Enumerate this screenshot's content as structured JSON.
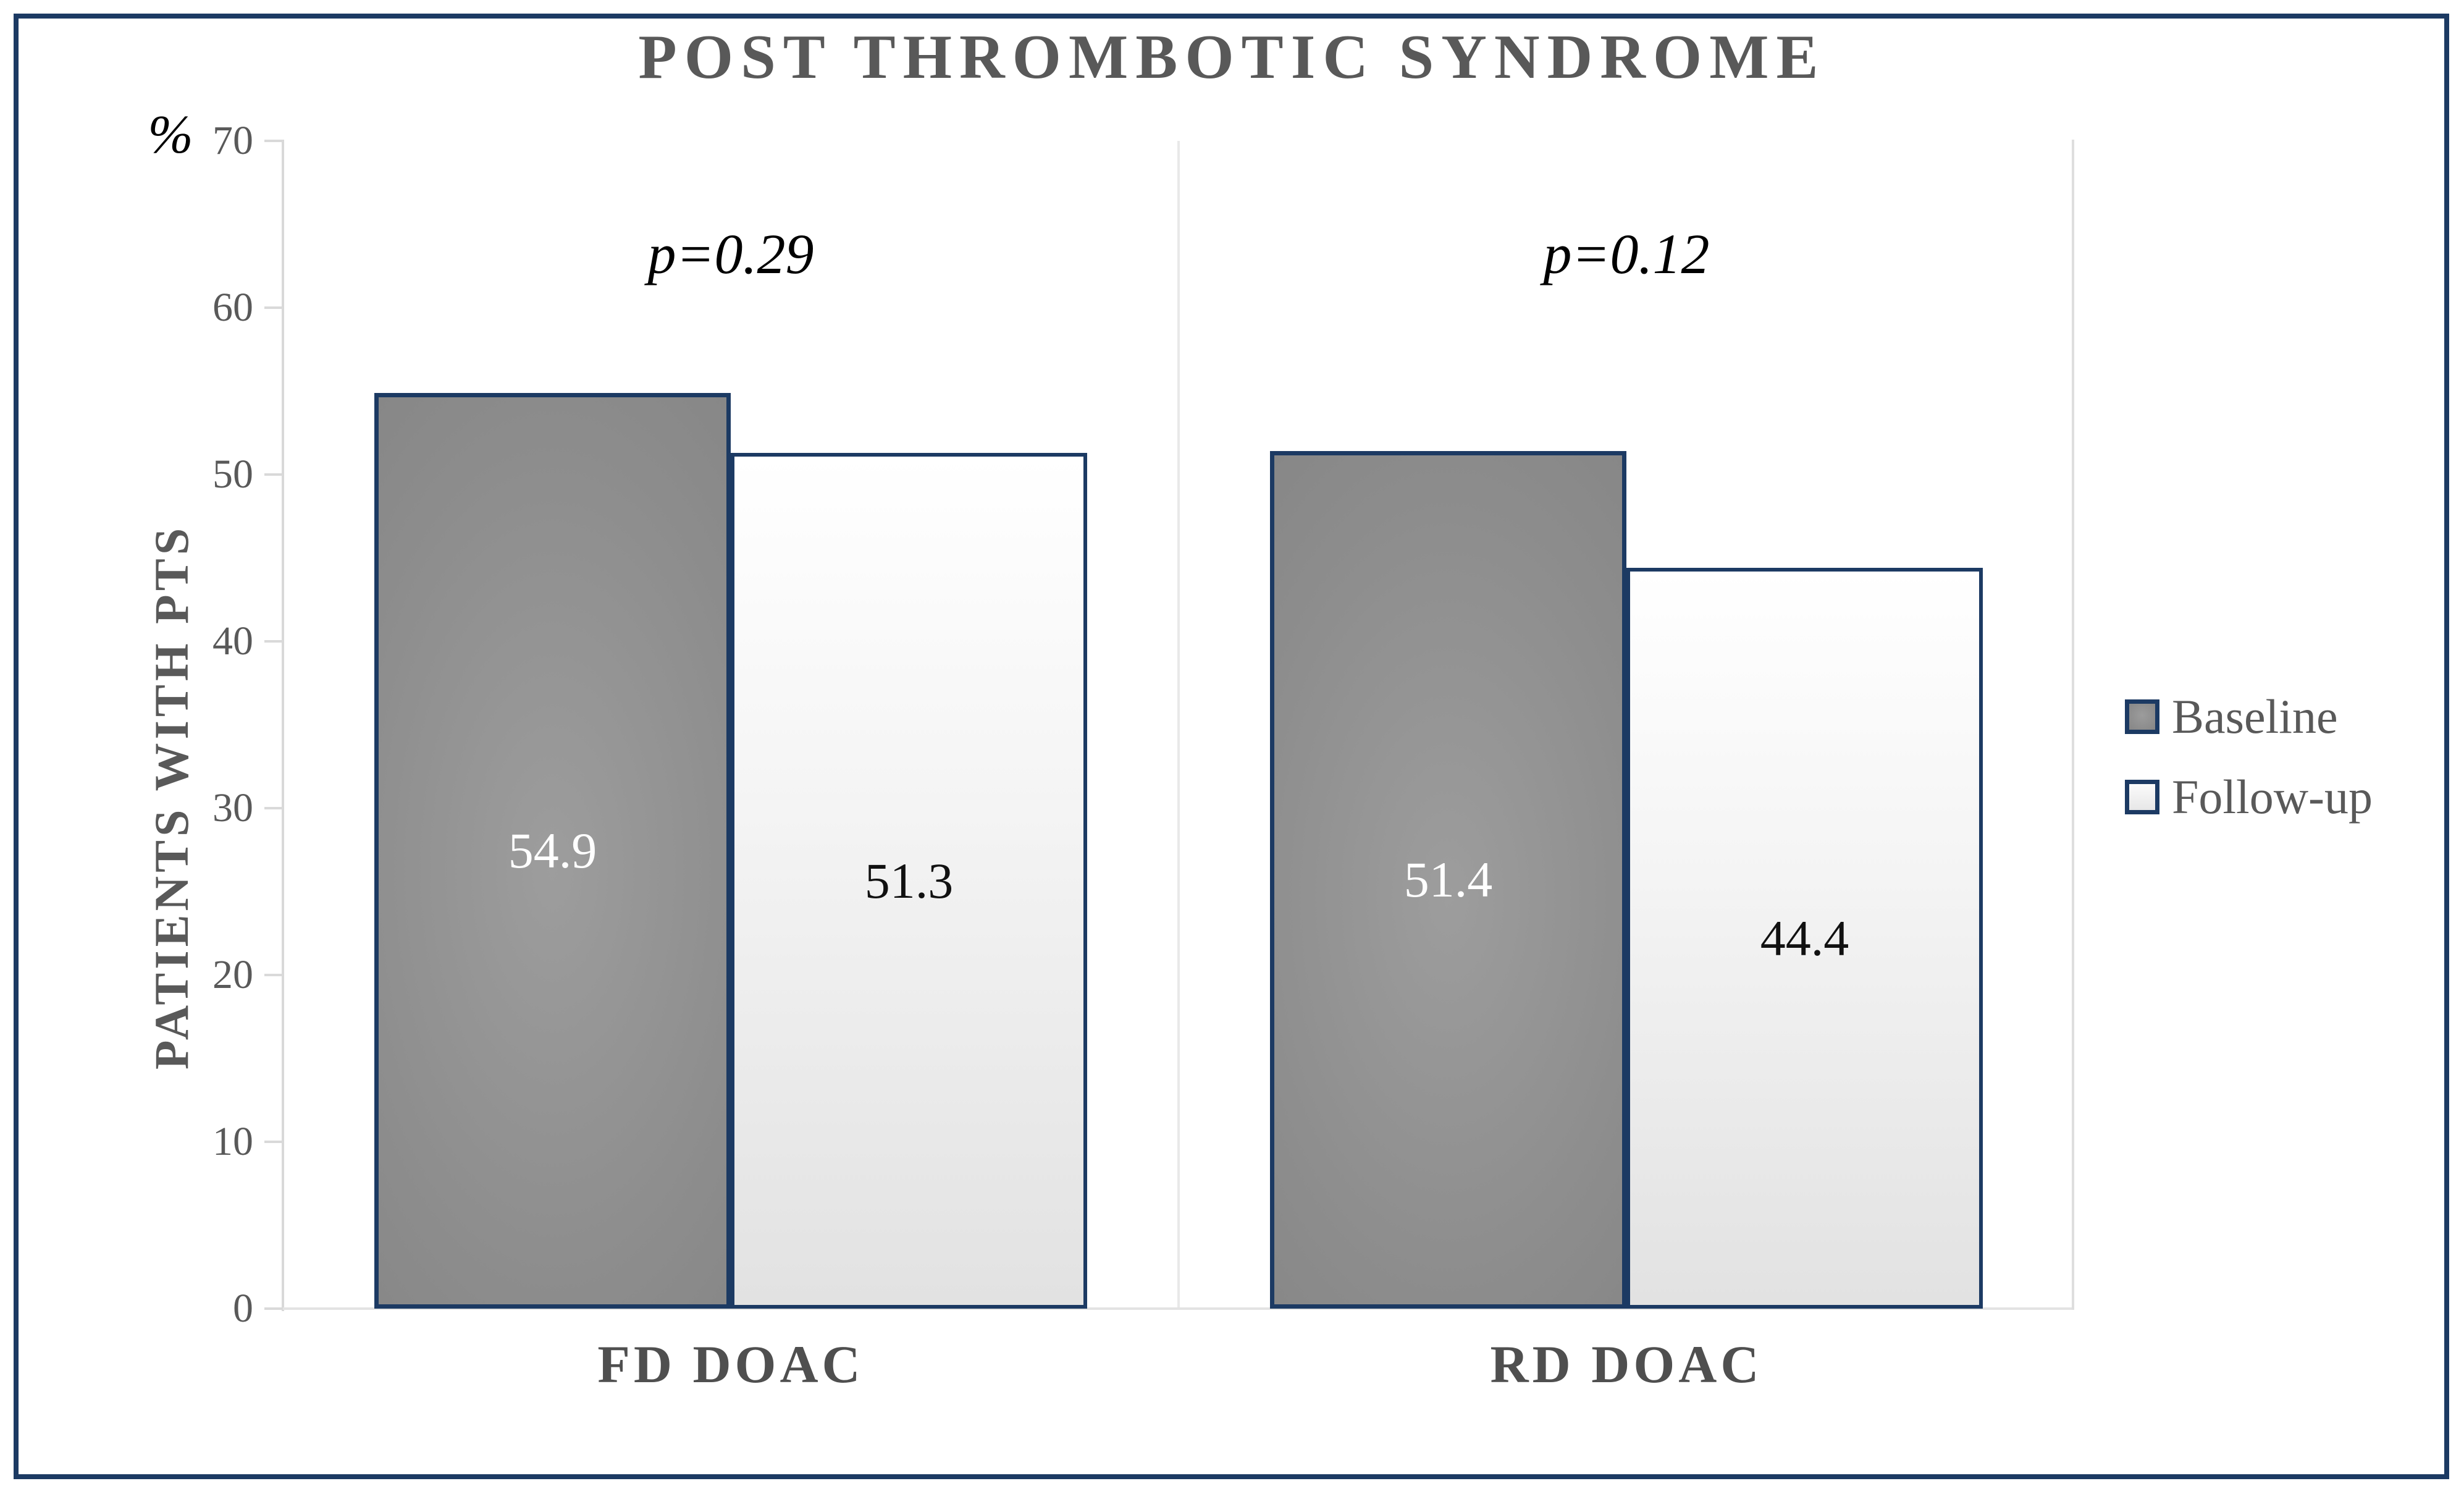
{
  "chart_data": {
    "type": "bar",
    "title": "POST THROMBOTIC SYNDROME",
    "y_unit_label": "%",
    "ylabel": "PATIENTS WITH PTS",
    "xlabel": "",
    "ylim": [
      0,
      70
    ],
    "yticks": [
      0,
      10,
      20,
      30,
      40,
      50,
      60,
      70
    ],
    "grid": false,
    "legend_position": "right",
    "categories": [
      "FD DOAC",
      "RD DOAC"
    ],
    "series": [
      {
        "name": "Baseline",
        "values": [
          54.9,
          51.4
        ]
      },
      {
        "name": "Follow-up",
        "values": [
          51.3,
          44.4
        ]
      }
    ],
    "value_labels": [
      [
        "54.9",
        "51.3"
      ],
      [
        "51.4",
        "44.4"
      ]
    ],
    "annotations": [
      {
        "text": "p=0.29",
        "category": "FD DOAC"
      },
      {
        "text": "p=0.12",
        "category": "RD DOAC"
      }
    ]
  },
  "colors": {
    "frame_border": "#1c3a63",
    "bar_border": "#1c3a63",
    "baseline_fill": "#8c8c8c",
    "followup_fill": "#ededed",
    "title_text": "#595959",
    "axis_text": "#595959",
    "category_text": "#4f4f4f",
    "legend_text": "#595959",
    "axis_line": "#d9d9d9",
    "divider_line": "#e9e9e9",
    "baseline_value_text": "#ffffff",
    "followup_value_text": "#111111",
    "p_value_text": "#000000"
  }
}
